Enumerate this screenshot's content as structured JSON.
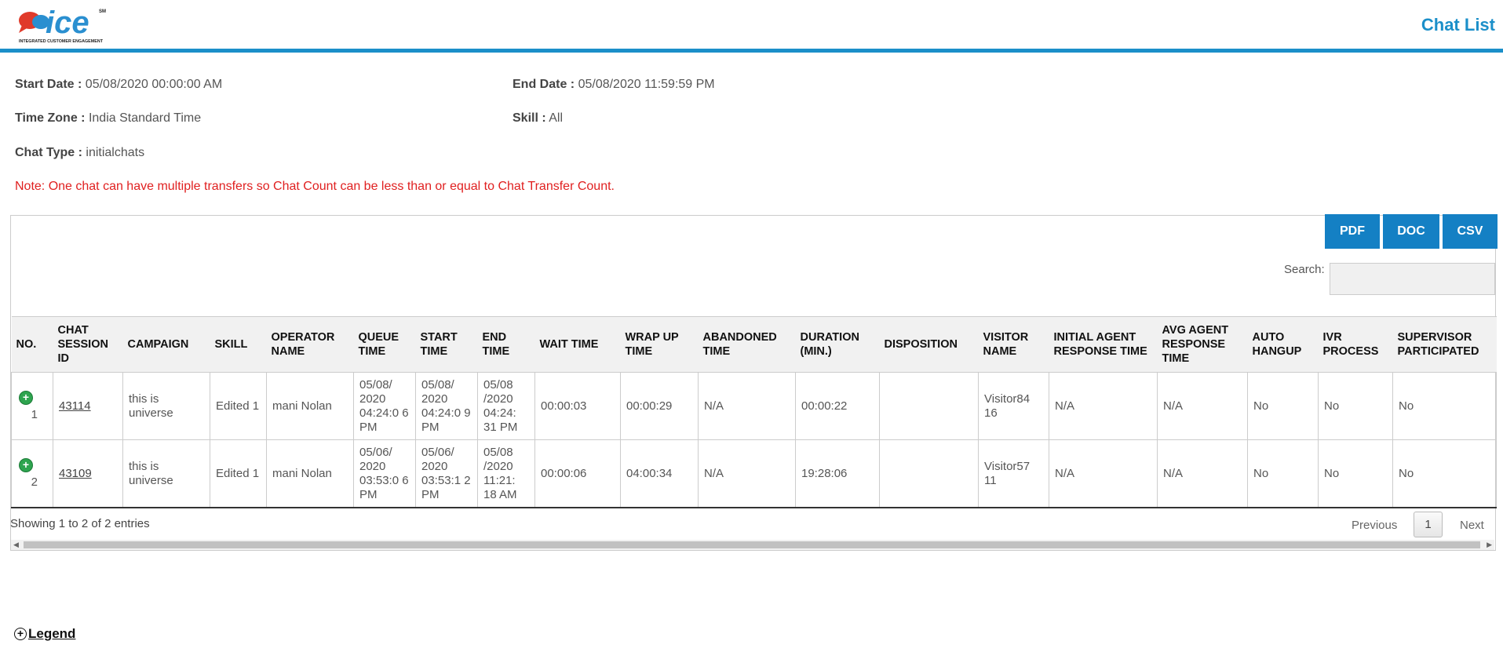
{
  "header": {
    "logo_text": "ice",
    "logo_tagline": "INTEGRATED CUSTOMER ENGAGEMENT",
    "logo_sm": "SM",
    "page_title": "Chat List"
  },
  "filters": {
    "start_date_label": "Start Date :",
    "start_date_value": " 05/08/2020 00:00:00 AM",
    "end_date_label": "End Date :",
    "end_date_value": " 05/08/2020 11:59:59 PM",
    "time_zone_label": "Time Zone :",
    "time_zone_value": " India Standard Time",
    "skill_label": "Skill :",
    "skill_value": " All",
    "chat_type_label": "Chat Type :",
    "chat_type_value": " initialchats"
  },
  "note": "Note: One chat can have multiple transfers so Chat Count can be less than or equal to Chat Transfer Count.",
  "export": {
    "pdf": "PDF",
    "doc": "DOC",
    "csv": "CSV"
  },
  "search": {
    "label": "Search:",
    "value": ""
  },
  "table": {
    "columns": [
      "NO.",
      "CHAT SESSION ID",
      "CAMPAIGN",
      "SKILL",
      "OPERATOR NAME",
      "QUEUE TIME",
      "START TIME",
      "END TIME",
      "WAIT TIME",
      "WRAP UP TIME",
      "ABANDONED TIME",
      "DURATION (MIN.)",
      "DISPOSITION",
      "VISITOR NAME",
      "INITIAL AGENT RESPONSE TIME",
      "AVG AGENT RESPONSE TIME",
      "AUTO HANGUP",
      "IVR PROCESS",
      "SUPERVISOR PARTICIPATED"
    ],
    "rows": [
      [
        "1",
        "43114",
        "this is universe",
        "Edited 1",
        "mani Nolan",
        "05/08/ 2020 04:24:0 6 PM",
        "05/08/ 2020 04:24:0 9 PM",
        "05/08 /2020 04:24: 31 PM",
        "00:00:03",
        "00:00:29",
        "N/A",
        "00:00:22",
        "",
        "Visitor84 16",
        "N/A",
        "N/A",
        "No",
        "No",
        "No"
      ],
      [
        "2",
        "43109",
        "this is universe",
        "Edited 1",
        "mani Nolan",
        "05/06/ 2020 03:53:0 6 PM",
        "05/06/ 2020 03:53:1 2 PM",
        "05/08 /2020 11:21: 18 AM",
        "00:00:06",
        "04:00:34",
        "N/A",
        "19:28:06",
        "",
        "Visitor57 11",
        "N/A",
        "N/A",
        "No",
        "No",
        "No"
      ]
    ]
  },
  "footer": {
    "showing": "Showing 1 to 2 of 2 entries",
    "previous": "Previous",
    "page": "1",
    "next": "Next"
  },
  "legend": {
    "label": "Legend"
  },
  "colors": {
    "brand": "#1b8fc9",
    "button": "#1480c4",
    "note": "#e02020",
    "expand": "#2ea44f"
  }
}
